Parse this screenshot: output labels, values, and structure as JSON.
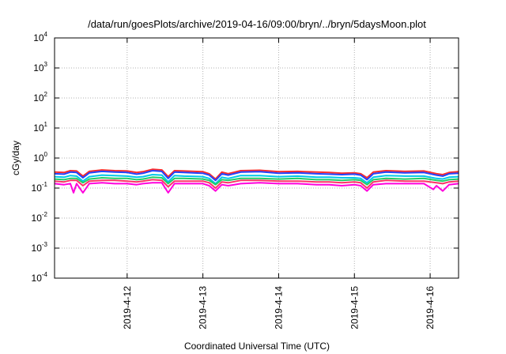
{
  "chart_data": {
    "type": "line",
    "title": "/data/run/goesPlots/archive/2019-04-16/09:00/bryn/../bryn/5daysMoon.plot",
    "xlabel": "Coordinated Universal Time (UTC)",
    "ylabel": "cGy/day",
    "yscale": "log",
    "grid": true,
    "ylim": [
      0.0001,
      10000
    ],
    "y_ticks": [
      {
        "value": 0.0001,
        "base": "10",
        "exp": "-4"
      },
      {
        "value": 0.001,
        "base": "10",
        "exp": "-3"
      },
      {
        "value": 0.01,
        "base": "10",
        "exp": "-2"
      },
      {
        "value": 0.1,
        "base": "10",
        "exp": "-1"
      },
      {
        "value": 1,
        "base": "10",
        "exp": "0"
      },
      {
        "value": 10,
        "base": "10",
        "exp": "1"
      },
      {
        "value": 100,
        "base": "10",
        "exp": "2"
      },
      {
        "value": 1000,
        "base": "10",
        "exp": "3"
      },
      {
        "value": 10000,
        "base": "10",
        "exp": "4"
      }
    ],
    "xlim": [
      "2019-04-11T01:00",
      "2019-04-16T09:00"
    ],
    "x_ticks": [
      {
        "value": "2019-04-12T00:00",
        "label": "2019-4-12"
      },
      {
        "value": "2019-04-13T00:00",
        "label": "2019-4-13"
      },
      {
        "value": "2019-04-14T00:00",
        "label": "2019-4-14"
      },
      {
        "value": "2019-04-15T00:00",
        "label": "2019-4-15"
      },
      {
        "value": "2019-04-16T00:00",
        "label": "2019-4-16"
      }
    ],
    "series": [
      {
        "color": "#ff2a2a",
        "values": [
          [
            "2019-04-11T01:00",
            0.34
          ],
          [
            "2019-04-11T04:00",
            0.33
          ],
          [
            "2019-04-11T06:00",
            0.38
          ],
          [
            "2019-04-11T08:00",
            0.37
          ],
          [
            "2019-04-11T10:00",
            0.25
          ],
          [
            "2019-04-11T12:00",
            0.36
          ],
          [
            "2019-04-11T16:00",
            0.4
          ],
          [
            "2019-04-11T20:00",
            0.38
          ],
          [
            "2019-04-12T00:00",
            0.37
          ],
          [
            "2019-04-12T03:00",
            0.33
          ],
          [
            "2019-04-12T05:00",
            0.35
          ],
          [
            "2019-04-12T08:00",
            0.42
          ],
          [
            "2019-04-12T11:00",
            0.4
          ],
          [
            "2019-04-12T13:00",
            0.24
          ],
          [
            "2019-04-12T15:00",
            0.38
          ],
          [
            "2019-04-12T18:00",
            0.37
          ],
          [
            "2019-04-13T00:00",
            0.35
          ],
          [
            "2019-04-13T02:00",
            0.3
          ],
          [
            "2019-04-13T04:00",
            0.2
          ],
          [
            "2019-04-13T06:00",
            0.34
          ],
          [
            "2019-04-13T08:00",
            0.3
          ],
          [
            "2019-04-13T12:00",
            0.38
          ],
          [
            "2019-04-13T18:00",
            0.39
          ],
          [
            "2019-04-14T00:00",
            0.35
          ],
          [
            "2019-04-14T06:00",
            0.36
          ],
          [
            "2019-04-14T12:00",
            0.34
          ],
          [
            "2019-04-14T16:00",
            0.33
          ],
          [
            "2019-04-14T20:00",
            0.31
          ],
          [
            "2019-04-15T00:00",
            0.32
          ],
          [
            "2019-04-15T02:00",
            0.3
          ],
          [
            "2019-04-15T04:00",
            0.22
          ],
          [
            "2019-04-15T06:00",
            0.34
          ],
          [
            "2019-04-15T10:00",
            0.38
          ],
          [
            "2019-04-15T16:00",
            0.36
          ],
          [
            "2019-04-15T22:00",
            0.37
          ],
          [
            "2019-04-16T02:00",
            0.3
          ],
          [
            "2019-04-16T04:00",
            0.28
          ],
          [
            "2019-04-16T06:00",
            0.33
          ],
          [
            "2019-04-16T09:00",
            0.35
          ]
        ]
      },
      {
        "color": "#2244ff",
        "values": [
          [
            "2019-04-11T01:00",
            0.3
          ],
          [
            "2019-04-11T04:00",
            0.29
          ],
          [
            "2019-04-11T06:00",
            0.34
          ],
          [
            "2019-04-11T08:00",
            0.33
          ],
          [
            "2019-04-11T10:00",
            0.22
          ],
          [
            "2019-04-11T12:00",
            0.32
          ],
          [
            "2019-04-11T16:00",
            0.36
          ],
          [
            "2019-04-11T20:00",
            0.34
          ],
          [
            "2019-04-12T00:00",
            0.33
          ],
          [
            "2019-04-12T03:00",
            0.29
          ],
          [
            "2019-04-12T05:00",
            0.31
          ],
          [
            "2019-04-12T08:00",
            0.38
          ],
          [
            "2019-04-12T11:00",
            0.36
          ],
          [
            "2019-04-12T13:00",
            0.21
          ],
          [
            "2019-04-12T15:00",
            0.34
          ],
          [
            "2019-04-12T18:00",
            0.33
          ],
          [
            "2019-04-13T00:00",
            0.31
          ],
          [
            "2019-04-13T02:00",
            0.27
          ],
          [
            "2019-04-13T04:00",
            0.18
          ],
          [
            "2019-04-13T06:00",
            0.3
          ],
          [
            "2019-04-13T08:00",
            0.27
          ],
          [
            "2019-04-13T12:00",
            0.34
          ],
          [
            "2019-04-13T18:00",
            0.35
          ],
          [
            "2019-04-14T00:00",
            0.31
          ],
          [
            "2019-04-14T06:00",
            0.32
          ],
          [
            "2019-04-14T12:00",
            0.3
          ],
          [
            "2019-04-14T16:00",
            0.29
          ],
          [
            "2019-04-14T20:00",
            0.28
          ],
          [
            "2019-04-15T00:00",
            0.29
          ],
          [
            "2019-04-15T02:00",
            0.27
          ],
          [
            "2019-04-15T04:00",
            0.19
          ],
          [
            "2019-04-15T06:00",
            0.3
          ],
          [
            "2019-04-15T10:00",
            0.34
          ],
          [
            "2019-04-15T16:00",
            0.32
          ],
          [
            "2019-04-15T22:00",
            0.33
          ],
          [
            "2019-04-16T02:00",
            0.27
          ],
          [
            "2019-04-16T04:00",
            0.25
          ],
          [
            "2019-04-16T06:00",
            0.3
          ],
          [
            "2019-04-16T09:00",
            0.31
          ]
        ]
      },
      {
        "color": "#00c8e8",
        "values": [
          [
            "2019-04-11T01:00",
            0.24
          ],
          [
            "2019-04-11T04:00",
            0.23
          ],
          [
            "2019-04-11T06:00",
            0.26
          ],
          [
            "2019-04-11T08:00",
            0.25
          ],
          [
            "2019-04-11T10:00",
            0.17
          ],
          [
            "2019-04-11T12:00",
            0.24
          ],
          [
            "2019-04-11T16:00",
            0.27
          ],
          [
            "2019-04-11T20:00",
            0.26
          ],
          [
            "2019-04-12T00:00",
            0.25
          ],
          [
            "2019-04-12T03:00",
            0.23
          ],
          [
            "2019-04-12T05:00",
            0.24
          ],
          [
            "2019-04-12T08:00",
            0.28
          ],
          [
            "2019-04-12T11:00",
            0.27
          ],
          [
            "2019-04-12T13:00",
            0.16
          ],
          [
            "2019-04-12T15:00",
            0.26
          ],
          [
            "2019-04-12T18:00",
            0.25
          ],
          [
            "2019-04-13T00:00",
            0.24
          ],
          [
            "2019-04-13T02:00",
            0.21
          ],
          [
            "2019-04-13T04:00",
            0.14
          ],
          [
            "2019-04-13T06:00",
            0.23
          ],
          [
            "2019-04-13T08:00",
            0.21
          ],
          [
            "2019-04-13T12:00",
            0.26
          ],
          [
            "2019-04-13T18:00",
            0.26
          ],
          [
            "2019-04-14T00:00",
            0.24
          ],
          [
            "2019-04-14T06:00",
            0.25
          ],
          [
            "2019-04-14T12:00",
            0.23
          ],
          [
            "2019-04-14T16:00",
            0.23
          ],
          [
            "2019-04-14T20:00",
            0.22
          ],
          [
            "2019-04-15T00:00",
            0.22
          ],
          [
            "2019-04-15T02:00",
            0.21
          ],
          [
            "2019-04-15T04:00",
            0.15
          ],
          [
            "2019-04-15T06:00",
            0.23
          ],
          [
            "2019-04-15T10:00",
            0.26
          ],
          [
            "2019-04-15T16:00",
            0.25
          ],
          [
            "2019-04-15T22:00",
            0.25
          ],
          [
            "2019-04-16T02:00",
            0.21
          ],
          [
            "2019-04-16T04:00",
            0.2
          ],
          [
            "2019-04-16T06:00",
            0.23
          ],
          [
            "2019-04-16T09:00",
            0.24
          ]
        ]
      },
      {
        "color": "#22cc66",
        "values": [
          [
            "2019-04-11T01:00",
            0.2
          ],
          [
            "2019-04-11T04:00",
            0.19
          ],
          [
            "2019-04-11T06:00",
            0.21
          ],
          [
            "2019-04-11T08:00",
            0.21
          ],
          [
            "2019-04-11T10:00",
            0.15
          ],
          [
            "2019-04-11T12:00",
            0.2
          ],
          [
            "2019-04-11T16:00",
            0.22
          ],
          [
            "2019-04-11T20:00",
            0.21
          ],
          [
            "2019-04-12T00:00",
            0.21
          ],
          [
            "2019-04-12T03:00",
            0.19
          ],
          [
            "2019-04-12T05:00",
            0.2
          ],
          [
            "2019-04-12T08:00",
            0.23
          ],
          [
            "2019-04-12T11:00",
            0.22
          ],
          [
            "2019-04-12T13:00",
            0.14
          ],
          [
            "2019-04-12T15:00",
            0.21
          ],
          [
            "2019-04-12T18:00",
            0.21
          ],
          [
            "2019-04-13T00:00",
            0.2
          ],
          [
            "2019-04-13T02:00",
            0.18
          ],
          [
            "2019-04-13T04:00",
            0.13
          ],
          [
            "2019-04-13T06:00",
            0.19
          ],
          [
            "2019-04-13T08:00",
            0.18
          ],
          [
            "2019-04-13T12:00",
            0.21
          ],
          [
            "2019-04-13T18:00",
            0.21
          ],
          [
            "2019-04-14T00:00",
            0.2
          ],
          [
            "2019-04-14T06:00",
            0.21
          ],
          [
            "2019-04-14T12:00",
            0.19
          ],
          [
            "2019-04-14T16:00",
            0.19
          ],
          [
            "2019-04-14T20:00",
            0.18
          ],
          [
            "2019-04-15T00:00",
            0.19
          ],
          [
            "2019-04-15T02:00",
            0.18
          ],
          [
            "2019-04-15T04:00",
            0.13
          ],
          [
            "2019-04-15T06:00",
            0.19
          ],
          [
            "2019-04-15T10:00",
            0.21
          ],
          [
            "2019-04-15T16:00",
            0.2
          ],
          [
            "2019-04-15T22:00",
            0.21
          ],
          [
            "2019-04-16T02:00",
            0.18
          ],
          [
            "2019-04-16T04:00",
            0.17
          ],
          [
            "2019-04-16T06:00",
            0.19
          ],
          [
            "2019-04-16T09:00",
            0.2
          ]
        ]
      },
      {
        "color": "#ff3366",
        "values": [
          [
            "2019-04-11T01:00",
            0.17
          ],
          [
            "2019-04-11T04:00",
            0.16
          ],
          [
            "2019-04-11T06:00",
            0.18
          ],
          [
            "2019-04-11T08:00",
            0.18
          ],
          [
            "2019-04-11T10:00",
            0.12
          ],
          [
            "2019-04-11T12:00",
            0.17
          ],
          [
            "2019-04-11T16:00",
            0.18
          ],
          [
            "2019-04-11T20:00",
            0.18
          ],
          [
            "2019-04-12T00:00",
            0.17
          ],
          [
            "2019-04-12T03:00",
            0.16
          ],
          [
            "2019-04-12T05:00",
            0.17
          ],
          [
            "2019-04-12T08:00",
            0.19
          ],
          [
            "2019-04-12T11:00",
            0.18
          ],
          [
            "2019-04-12T13:00",
            0.11
          ],
          [
            "2019-04-12T15:00",
            0.17
          ],
          [
            "2019-04-12T18:00",
            0.17
          ],
          [
            "2019-04-13T00:00",
            0.17
          ],
          [
            "2019-04-13T02:00",
            0.15
          ],
          [
            "2019-04-13T04:00",
            0.1
          ],
          [
            "2019-04-13T06:00",
            0.16
          ],
          [
            "2019-04-13T08:00",
            0.15
          ],
          [
            "2019-04-13T12:00",
            0.18
          ],
          [
            "2019-04-13T18:00",
            0.18
          ],
          [
            "2019-04-14T00:00",
            0.17
          ],
          [
            "2019-04-14T06:00",
            0.17
          ],
          [
            "2019-04-14T12:00",
            0.16
          ],
          [
            "2019-04-14T16:00",
            0.16
          ],
          [
            "2019-04-14T20:00",
            0.15
          ],
          [
            "2019-04-15T00:00",
            0.16
          ],
          [
            "2019-04-15T02:00",
            0.15
          ],
          [
            "2019-04-15T04:00",
            0.1
          ],
          [
            "2019-04-15T06:00",
            0.16
          ],
          [
            "2019-04-15T10:00",
            0.18
          ],
          [
            "2019-04-15T16:00",
            0.17
          ],
          [
            "2019-04-15T22:00",
            0.17
          ],
          [
            "2019-04-16T02:00",
            0.15
          ],
          [
            "2019-04-16T04:00",
            0.14
          ],
          [
            "2019-04-16T06:00",
            0.16
          ],
          [
            "2019-04-16T09:00",
            0.17
          ]
        ]
      },
      {
        "color": "#ff00dd",
        "values": [
          [
            "2019-04-11T01:00",
            0.14
          ],
          [
            "2019-04-11T04:00",
            0.13
          ],
          [
            "2019-04-11T06:00",
            0.14
          ],
          [
            "2019-04-11T07:00",
            0.07
          ],
          [
            "2019-04-11T08:00",
            0.14
          ],
          [
            "2019-04-11T10:00",
            0.07
          ],
          [
            "2019-04-11T12:00",
            0.14
          ],
          [
            "2019-04-11T16:00",
            0.15
          ],
          [
            "2019-04-11T20:00",
            0.14
          ],
          [
            "2019-04-12T00:00",
            0.14
          ],
          [
            "2019-04-12T03:00",
            0.13
          ],
          [
            "2019-04-12T05:00",
            0.14
          ],
          [
            "2019-04-12T08:00",
            0.15
          ],
          [
            "2019-04-12T11:00",
            0.15
          ],
          [
            "2019-04-12T13:00",
            0.07
          ],
          [
            "2019-04-12T15:00",
            0.14
          ],
          [
            "2019-04-12T18:00",
            0.14
          ],
          [
            "2019-04-13T00:00",
            0.14
          ],
          [
            "2019-04-13T02:00",
            0.12
          ],
          [
            "2019-04-13T04:00",
            0.08
          ],
          [
            "2019-04-13T06:00",
            0.13
          ],
          [
            "2019-04-13T08:00",
            0.12
          ],
          [
            "2019-04-13T12:00",
            0.14
          ],
          [
            "2019-04-13T18:00",
            0.15
          ],
          [
            "2019-04-14T00:00",
            0.14
          ],
          [
            "2019-04-14T06:00",
            0.14
          ],
          [
            "2019-04-14T12:00",
            0.13
          ],
          [
            "2019-04-14T16:00",
            0.13
          ],
          [
            "2019-04-14T20:00",
            0.12
          ],
          [
            "2019-04-15T00:00",
            0.13
          ],
          [
            "2019-04-15T02:00",
            0.12
          ],
          [
            "2019-04-15T04:00",
            0.08
          ],
          [
            "2019-04-15T06:00",
            0.13
          ],
          [
            "2019-04-15T10:00",
            0.14
          ],
          [
            "2019-04-15T16:00",
            0.14
          ],
          [
            "2019-04-15T22:00",
            0.14
          ],
          [
            "2019-04-16T01:00",
            0.09
          ],
          [
            "2019-04-16T02:00",
            0.12
          ],
          [
            "2019-04-16T04:00",
            0.08
          ],
          [
            "2019-04-16T06:00",
            0.13
          ],
          [
            "2019-04-16T09:00",
            0.14
          ]
        ]
      }
    ]
  }
}
